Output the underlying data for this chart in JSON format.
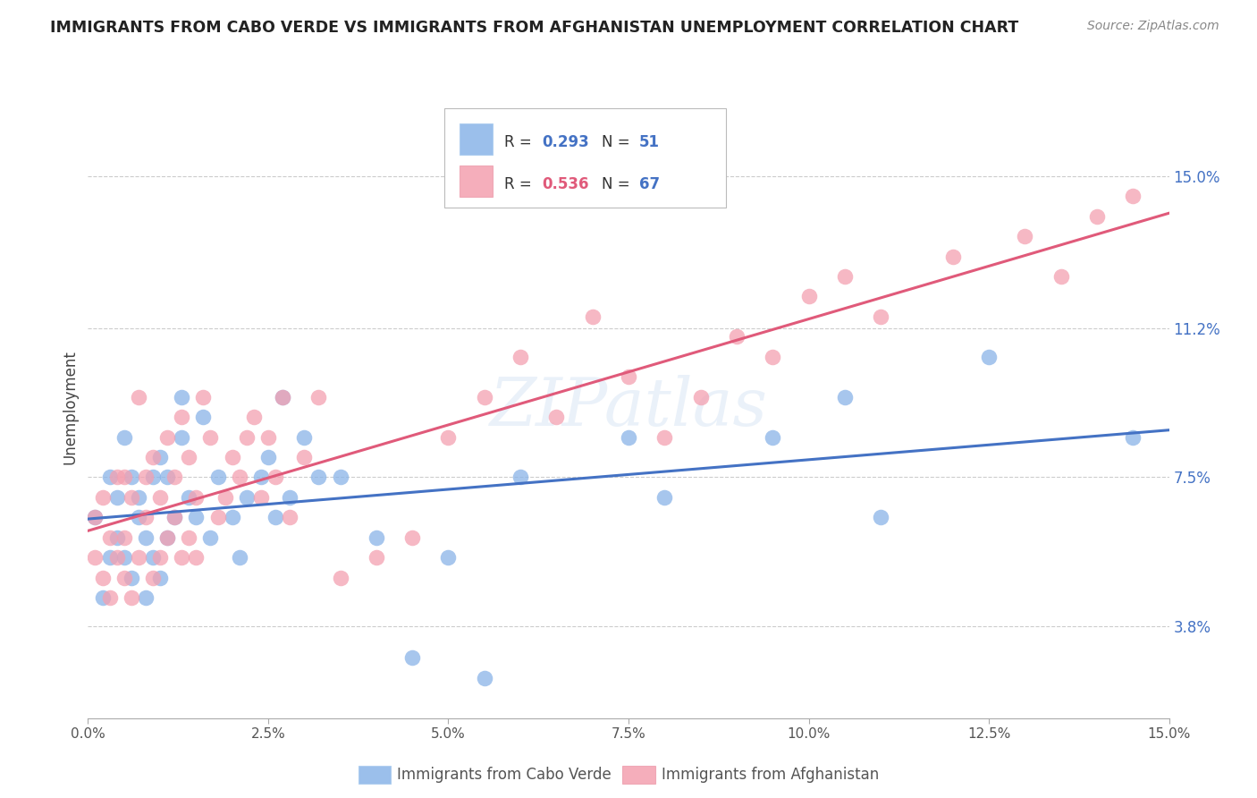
{
  "title": "IMMIGRANTS FROM CABO VERDE VS IMMIGRANTS FROM AFGHANISTAN UNEMPLOYMENT CORRELATION CHART",
  "source": "Source: ZipAtlas.com",
  "ylabel": "Unemployment",
  "ytick_labels": [
    "3.8%",
    "7.5%",
    "11.2%",
    "15.0%"
  ],
  "ytick_values": [
    3.8,
    7.5,
    11.2,
    15.0
  ],
  "xmin": 0.0,
  "xmax": 15.0,
  "ymin": 1.5,
  "ymax": 17.0,
  "legend_label_blue": "Immigrants from Cabo Verde",
  "legend_label_pink": "Immigrants from Afghanistan",
  "blue_color": "#8ab4e8",
  "pink_color": "#f4a0b0",
  "blue_line_color": "#4472c4",
  "pink_line_color": "#e05a7a",
  "watermark": "ZIPatlas",
  "cabo_verde_x": [
    0.1,
    0.2,
    0.3,
    0.3,
    0.4,
    0.4,
    0.5,
    0.5,
    0.6,
    0.6,
    0.7,
    0.7,
    0.8,
    0.8,
    0.9,
    0.9,
    1.0,
    1.0,
    1.1,
    1.1,
    1.2,
    1.3,
    1.3,
    1.4,
    1.5,
    1.6,
    1.7,
    1.8,
    2.0,
    2.1,
    2.2,
    2.4,
    2.5,
    2.6,
    2.7,
    2.8,
    3.0,
    3.2,
    3.5,
    4.0,
    4.5,
    5.0,
    5.5,
    6.0,
    7.5,
    8.0,
    9.5,
    10.5,
    11.0,
    12.5,
    14.5
  ],
  "cabo_verde_y": [
    6.5,
    4.5,
    5.5,
    7.5,
    6.0,
    7.0,
    5.5,
    8.5,
    5.0,
    7.5,
    6.5,
    7.0,
    4.5,
    6.0,
    5.5,
    7.5,
    5.0,
    8.0,
    6.0,
    7.5,
    6.5,
    8.5,
    9.5,
    7.0,
    6.5,
    9.0,
    6.0,
    7.5,
    6.5,
    5.5,
    7.0,
    7.5,
    8.0,
    6.5,
    9.5,
    7.0,
    8.5,
    7.5,
    7.5,
    6.0,
    3.0,
    5.5,
    2.5,
    7.5,
    8.5,
    7.0,
    8.5,
    9.5,
    6.5,
    10.5,
    8.5
  ],
  "afghanistan_x": [
    0.1,
    0.1,
    0.2,
    0.2,
    0.3,
    0.3,
    0.4,
    0.4,
    0.5,
    0.5,
    0.5,
    0.6,
    0.6,
    0.7,
    0.7,
    0.8,
    0.8,
    0.9,
    0.9,
    1.0,
    1.0,
    1.1,
    1.1,
    1.2,
    1.2,
    1.3,
    1.3,
    1.4,
    1.4,
    1.5,
    1.5,
    1.6,
    1.7,
    1.8,
    1.9,
    2.0,
    2.1,
    2.2,
    2.3,
    2.4,
    2.5,
    2.6,
    2.7,
    2.8,
    3.0,
    3.2,
    3.5,
    4.0,
    4.5,
    5.0,
    5.5,
    6.0,
    6.5,
    7.0,
    7.5,
    8.0,
    8.5,
    9.0,
    9.5,
    10.0,
    10.5,
    11.0,
    12.0,
    13.0,
    13.5,
    14.0,
    14.5
  ],
  "afghanistan_y": [
    5.5,
    6.5,
    5.0,
    7.0,
    4.5,
    6.0,
    5.5,
    7.5,
    5.0,
    6.0,
    7.5,
    4.5,
    7.0,
    5.5,
    9.5,
    6.5,
    7.5,
    5.0,
    8.0,
    5.5,
    7.0,
    6.0,
    8.5,
    6.5,
    7.5,
    5.5,
    9.0,
    6.0,
    8.0,
    5.5,
    7.0,
    9.5,
    8.5,
    6.5,
    7.0,
    8.0,
    7.5,
    8.5,
    9.0,
    7.0,
    8.5,
    7.5,
    9.5,
    6.5,
    8.0,
    9.5,
    5.0,
    5.5,
    6.0,
    8.5,
    9.5,
    10.5,
    9.0,
    11.5,
    10.0,
    8.5,
    9.5,
    11.0,
    10.5,
    12.0,
    12.5,
    11.5,
    13.0,
    13.5,
    12.5,
    14.0,
    14.5
  ]
}
